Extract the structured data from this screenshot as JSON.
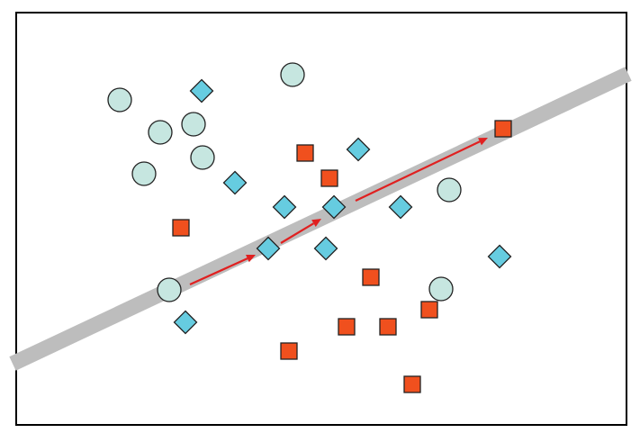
{
  "colors": {
    "background": "#ffffff",
    "frame": "#000000",
    "band": "#bdbdbd",
    "arrow": "#e02020",
    "circle_fill": "#c6e6e0",
    "diamond_fill": "#66cce0",
    "square_fill": "#f0501e",
    "shape_stroke": "#222222"
  },
  "shapes": {
    "circle": "circle-icon",
    "diamond": "diamond-icon",
    "square": "square-icon"
  }
}
